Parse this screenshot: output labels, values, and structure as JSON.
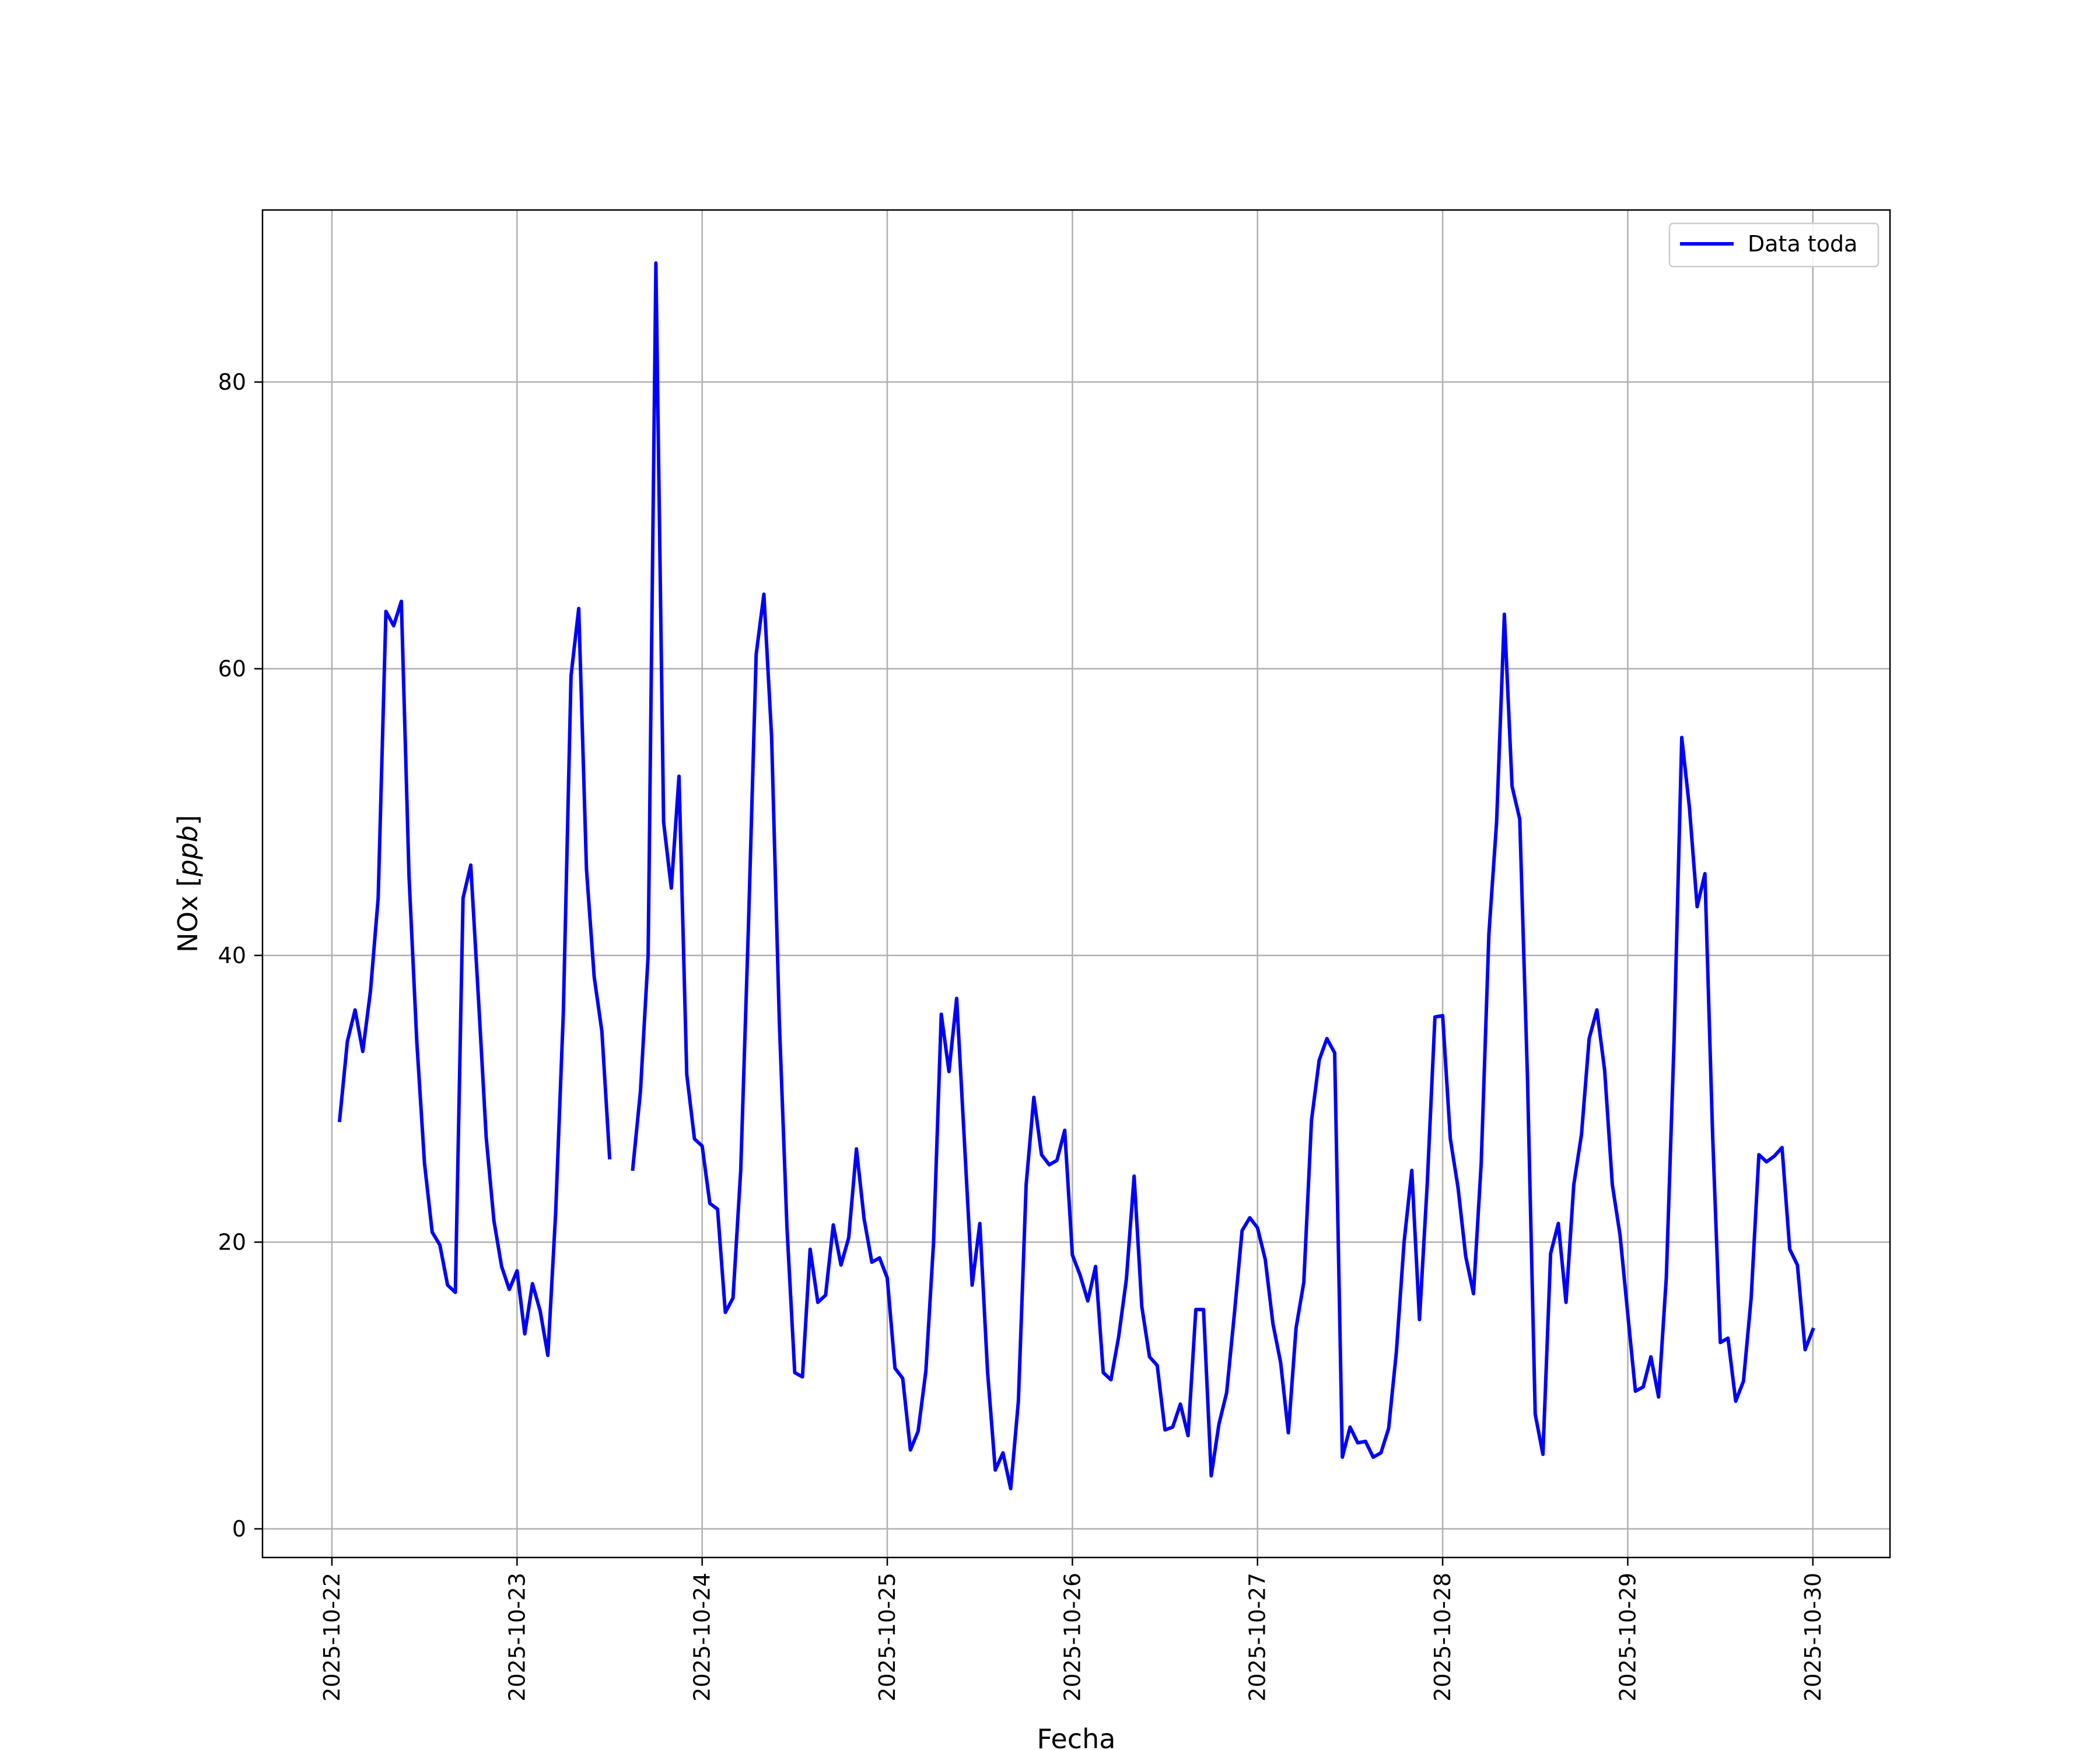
{
  "chart_data": {
    "type": "line",
    "xlabel": "Fecha",
    "ylabel": "NOx",
    "ylabel_unit": "ppb",
    "ylim": [
      -2,
      92
    ],
    "xlim": [
      "2025-10-21 15:00",
      "2025-10-30 10:00"
    ],
    "grid": true,
    "legend_position": "top-right",
    "colors": {
      "series": "#0000ff",
      "grid": "#b0b0b0"
    },
    "x_ticks": [
      "2025-10-22",
      "2025-10-23",
      "2025-10-24",
      "2025-10-25",
      "2025-10-26",
      "2025-10-27",
      "2025-10-28",
      "2025-10-29",
      "2025-10-30"
    ],
    "y_ticks": [
      "0",
      "20",
      "40",
      "60",
      "80"
    ],
    "series": [
      {
        "name": "Data toda",
        "color": "#0000ff",
        "segments": [
          [
            [
              "2025-10-22 01:00",
              28.5
            ],
            [
              "2025-10-22 02:00",
              34.0
            ],
            [
              "2025-10-22 03:00",
              36.2
            ],
            [
              "2025-10-22 04:00",
              33.3
            ],
            [
              "2025-10-22 05:00",
              37.5
            ],
            [
              "2025-10-22 06:00",
              44.0
            ],
            [
              "2025-10-22 07:00",
              64.0
            ],
            [
              "2025-10-22 08:00",
              63.0
            ],
            [
              "2025-10-22 09:00",
              64.7
            ],
            [
              "2025-10-22 10:00",
              45.5
            ],
            [
              "2025-10-22 11:00",
              34.0
            ],
            [
              "2025-10-22 12:00",
              25.5
            ],
            [
              "2025-10-22 13:00",
              20.7
            ],
            [
              "2025-10-22 14:00",
              19.8
            ],
            [
              "2025-10-22 15:00",
              17.0
            ],
            [
              "2025-10-22 16:00",
              16.5
            ],
            [
              "2025-10-22 17:00",
              44.0
            ],
            [
              "2025-10-22 18:00",
              46.3
            ],
            [
              "2025-10-22 19:00",
              37.0
            ],
            [
              "2025-10-22 20:00",
              27.3
            ],
            [
              "2025-10-22 21:00",
              21.5
            ],
            [
              "2025-10-22 22:00",
              18.3
            ],
            [
              "2025-10-22 23:00",
              16.7
            ],
            [
              "2025-10-23 00:00",
              18.0
            ],
            [
              "2025-10-23 01:00",
              13.6
            ],
            [
              "2025-10-23 02:00",
              17.1
            ],
            [
              "2025-10-23 03:00",
              15.2
            ],
            [
              "2025-10-23 04:00",
              12.1
            ],
            [
              "2025-10-23 05:00",
              22.0
            ],
            [
              "2025-10-23 06:00",
              36.0
            ],
            [
              "2025-10-23 07:00",
              59.5
            ],
            [
              "2025-10-23 08:00",
              64.2
            ],
            [
              "2025-10-23 09:00",
              46.0
            ],
            [
              "2025-10-23 10:00",
              38.5
            ],
            [
              "2025-10-23 11:00",
              34.7
            ],
            [
              "2025-10-23 12:00",
              25.9
            ]
          ],
          [
            [
              "2025-10-23 15:00",
              25.1
            ],
            [
              "2025-10-23 16:00",
              30.5
            ],
            [
              "2025-10-23 17:00",
              40.0
            ],
            [
              "2025-10-23 18:00",
              88.3
            ],
            [
              "2025-10-23 19:00",
              49.3
            ],
            [
              "2025-10-23 20:00",
              44.7
            ],
            [
              "2025-10-23 21:00",
              52.5
            ],
            [
              "2025-10-23 22:00",
              31.7
            ],
            [
              "2025-10-23 23:00",
              27.2
            ],
            [
              "2025-10-24 00:00",
              26.7
            ],
            [
              "2025-10-24 01:00",
              22.7
            ],
            [
              "2025-10-24 02:00",
              22.3
            ],
            [
              "2025-10-24 03:00",
              15.1
            ],
            [
              "2025-10-24 04:00",
              16.1
            ],
            [
              "2025-10-24 05:00",
              25.0
            ],
            [
              "2025-10-24 06:00",
              42.0
            ],
            [
              "2025-10-24 07:00",
              61.0
            ],
            [
              "2025-10-24 08:00",
              65.2
            ],
            [
              "2025-10-24 09:00",
              55.3
            ],
            [
              "2025-10-24 10:00",
              35.5
            ],
            [
              "2025-10-24 11:00",
              21.0
            ],
            [
              "2025-10-24 12:00",
              10.9
            ],
            [
              "2025-10-24 13:00",
              10.6
            ],
            [
              "2025-10-24 14:00",
              19.5
            ],
            [
              "2025-10-24 15:00",
              15.8
            ],
            [
              "2025-10-24 16:00",
              16.3
            ],
            [
              "2025-10-24 17:00",
              21.2
            ],
            [
              "2025-10-24 18:00",
              18.4
            ],
            [
              "2025-10-24 19:00",
              20.3
            ],
            [
              "2025-10-24 20:00",
              26.5
            ],
            [
              "2025-10-24 21:00",
              21.6
            ],
            [
              "2025-10-24 22:00",
              18.6
            ],
            [
              "2025-10-24 23:00",
              18.9
            ],
            [
              "2025-10-25 00:00",
              17.5
            ],
            [
              "2025-10-25 01:00",
              11.2
            ],
            [
              "2025-10-25 02:00",
              10.5
            ],
            [
              "2025-10-25 03:00",
              5.5
            ],
            [
              "2025-10-25 04:00",
              6.8
            ],
            [
              "2025-10-25 05:00",
              11.0
            ],
            [
              "2025-10-25 06:00",
              20.0
            ],
            [
              "2025-10-25 07:00",
              35.9
            ],
            [
              "2025-10-25 08:00",
              31.9
            ],
            [
              "2025-10-25 09:00",
              37.0
            ],
            [
              "2025-10-25 10:00",
              27.0
            ],
            [
              "2025-10-25 11:00",
              17.0
            ],
            [
              "2025-10-25 12:00",
              21.3
            ],
            [
              "2025-10-25 13:00",
              11.0
            ],
            [
              "2025-10-25 14:00",
              4.1
            ],
            [
              "2025-10-25 15:00",
              5.3
            ],
            [
              "2025-10-25 16:00",
              2.8
            ],
            [
              "2025-10-25 17:00",
              8.9
            ],
            [
              "2025-10-25 18:00",
              24.0
            ],
            [
              "2025-10-25 19:00",
              30.1
            ],
            [
              "2025-10-25 20:00",
              26.1
            ],
            [
              "2025-10-25 21:00",
              25.4
            ],
            [
              "2025-10-25 22:00",
              25.7
            ],
            [
              "2025-10-25 23:00",
              27.8
            ],
            [
              "2025-10-26 00:00",
              19.1
            ],
            [
              "2025-10-26 01:00",
              17.7
            ],
            [
              "2025-10-26 02:00",
              15.9
            ],
            [
              "2025-10-26 03:00",
              18.3
            ],
            [
              "2025-10-26 04:00",
              10.9
            ],
            [
              "2025-10-26 05:00",
              10.4
            ],
            [
              "2025-10-26 06:00",
              13.4
            ],
            [
              "2025-10-26 07:00",
              17.4
            ],
            [
              "2025-10-26 08:00",
              24.6
            ],
            [
              "2025-10-26 09:00",
              15.5
            ],
            [
              "2025-10-26 10:00",
              12.0
            ],
            [
              "2025-10-26 11:00",
              11.4
            ],
            [
              "2025-10-26 12:00",
              6.9
            ],
            [
              "2025-10-26 13:00",
              7.1
            ],
            [
              "2025-10-26 14:00",
              8.7
            ],
            [
              "2025-10-26 15:00",
              6.5
            ],
            [
              "2025-10-26 16:00",
              15.3
            ],
            [
              "2025-10-26 17:00",
              15.3
            ],
            [
              "2025-10-26 18:00",
              3.7
            ],
            [
              "2025-10-26 19:00",
              7.3
            ],
            [
              "2025-10-26 20:00",
              9.5
            ],
            [
              "2025-10-26 21:00",
              15.0
            ],
            [
              "2025-10-26 22:00",
              20.8
            ],
            [
              "2025-10-26 23:00",
              21.7
            ],
            [
              "2025-10-27 00:00",
              21.0
            ],
            [
              "2025-10-27 01:00",
              18.8
            ],
            [
              "2025-10-27 02:00",
              14.3
            ],
            [
              "2025-10-27 03:00",
              11.6
            ],
            [
              "2025-10-27 04:00",
              6.7
            ],
            [
              "2025-10-27 05:00",
              14.0
            ],
            [
              "2025-10-27 06:00",
              17.2
            ],
            [
              "2025-10-27 07:00",
              28.5
            ],
            [
              "2025-10-27 08:00",
              32.7
            ],
            [
              "2025-10-27 09:00",
              34.2
            ],
            [
              "2025-10-27 10:00",
              33.2
            ],
            [
              "2025-10-27 11:00",
              5.0
            ],
            [
              "2025-10-27 12:00",
              7.1
            ],
            [
              "2025-10-27 13:00",
              6.0
            ],
            [
              "2025-10-27 14:00",
              6.1
            ],
            [
              "2025-10-27 15:00",
              5.0
            ],
            [
              "2025-10-27 16:00",
              5.3
            ],
            [
              "2025-10-27 17:00",
              7.0
            ],
            [
              "2025-10-27 18:00",
              12.3
            ],
            [
              "2025-10-27 19:00",
              20.0
            ],
            [
              "2025-10-27 20:00",
              25.0
            ],
            [
              "2025-10-27 21:00",
              14.6
            ],
            [
              "2025-10-27 22:00",
              24.0
            ],
            [
              "2025-10-27 23:00",
              35.7
            ],
            [
              "2025-10-28 00:00",
              35.8
            ],
            [
              "2025-10-28 01:00",
              27.2
            ],
            [
              "2025-10-28 02:00",
              23.8
            ],
            [
              "2025-10-28 03:00",
              19.0
            ],
            [
              "2025-10-28 04:00",
              16.4
            ],
            [
              "2025-10-28 05:00",
              25.5
            ],
            [
              "2025-10-28 06:00",
              41.5
            ],
            [
              "2025-10-28 07:00",
              49.3
            ],
            [
              "2025-10-28 08:00",
              63.8
            ],
            [
              "2025-10-28 09:00",
              51.8
            ],
            [
              "2025-10-28 10:00",
              49.5
            ],
            [
              "2025-10-28 11:00",
              31.5
            ],
            [
              "2025-10-28 12:00",
              8.0
            ],
            [
              "2025-10-28 13:00",
              5.2
            ],
            [
              "2025-10-28 14:00",
              19.2
            ],
            [
              "2025-10-28 15:00",
              21.3
            ],
            [
              "2025-10-28 16:00",
              15.8
            ],
            [
              "2025-10-28 17:00",
              24.0
            ],
            [
              "2025-10-28 18:00",
              27.5
            ],
            [
              "2025-10-28 19:00",
              34.2
            ],
            [
              "2025-10-28 20:00",
              36.2
            ],
            [
              "2025-10-28 21:00",
              32.0
            ],
            [
              "2025-10-28 22:00",
              24.0
            ],
            [
              "2025-10-28 23:00",
              20.5
            ],
            [
              "2025-10-29 00:00",
              15.0
            ],
            [
              "2025-10-29 01:00",
              9.6
            ],
            [
              "2025-10-29 02:00",
              9.9
            ],
            [
              "2025-10-29 03:00",
              12.0
            ],
            [
              "2025-10-29 04:00",
              9.2
            ],
            [
              "2025-10-29 05:00",
              17.5
            ],
            [
              "2025-10-29 06:00",
              34.0
            ],
            [
              "2025-10-29 07:00",
              55.2
            ],
            [
              "2025-10-29 08:00",
              50.3
            ],
            [
              "2025-10-29 09:00",
              43.4
            ],
            [
              "2025-10-29 10:00",
              45.7
            ],
            [
              "2025-10-29 11:00",
              27.5
            ],
            [
              "2025-10-29 12:00",
              13.0
            ],
            [
              "2025-10-29 13:00",
              13.3
            ],
            [
              "2025-10-29 14:00",
              8.9
            ],
            [
              "2025-10-29 15:00",
              10.3
            ],
            [
              "2025-10-29 16:00",
              16.1
            ],
            [
              "2025-10-29 17:00",
              26.1
            ],
            [
              "2025-10-29 18:00",
              25.6
            ],
            [
              "2025-10-29 19:00",
              26.0
            ],
            [
              "2025-10-29 20:00",
              26.6
            ],
            [
              "2025-10-29 21:00",
              19.5
            ],
            [
              "2025-10-29 22:00",
              18.4
            ],
            [
              "2025-10-29 23:00",
              12.5
            ],
            [
              "2025-10-30 00:00",
              13.9
            ]
          ]
        ]
      }
    ]
  }
}
